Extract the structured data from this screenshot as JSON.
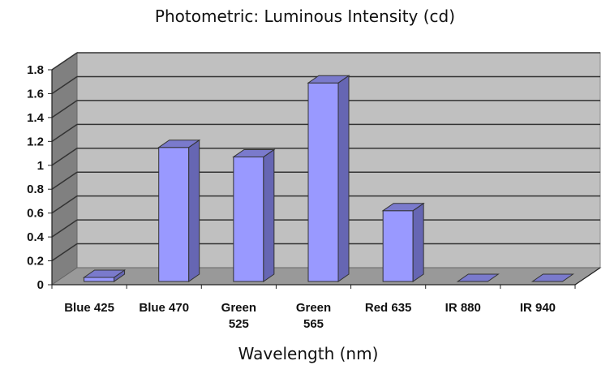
{
  "chart_data": {
    "type": "bar",
    "style": "3d-column",
    "title": "Photometric:  Luminous Intensity (cd)",
    "xlabel": "Wavelength (nm)",
    "ylabel": "",
    "categories": [
      "Blue 425",
      "Blue 470",
      "Green 525",
      "Green 565",
      "Red 635",
      "IR 880",
      "IR 940"
    ],
    "category_lines": [
      [
        "Blue 425"
      ],
      [
        "Blue 470"
      ],
      [
        "Green",
        "525"
      ],
      [
        "Green",
        "565"
      ],
      [
        "Red 635"
      ],
      [
        "IR 880"
      ],
      [
        "IR 940"
      ]
    ],
    "values": [
      0.03,
      1.15,
      1.07,
      1.69,
      0.62,
      0.0,
      0.0
    ],
    "ylim": [
      0,
      1.8
    ],
    "yticks": [
      "0",
      "0.2",
      "0.4",
      "0.6",
      "0.8",
      "1",
      "1.2",
      "1.4",
      "1.6",
      "1.8"
    ],
    "grid": true,
    "legend": null,
    "colors": {
      "bar_front": "#9999ff",
      "bar_side": "#6666b3",
      "bar_top": "#7a7acc",
      "wall": "#c0c0c0",
      "side_wall": "#808080",
      "floor": "#999999",
      "gridline": "#333333"
    }
  }
}
